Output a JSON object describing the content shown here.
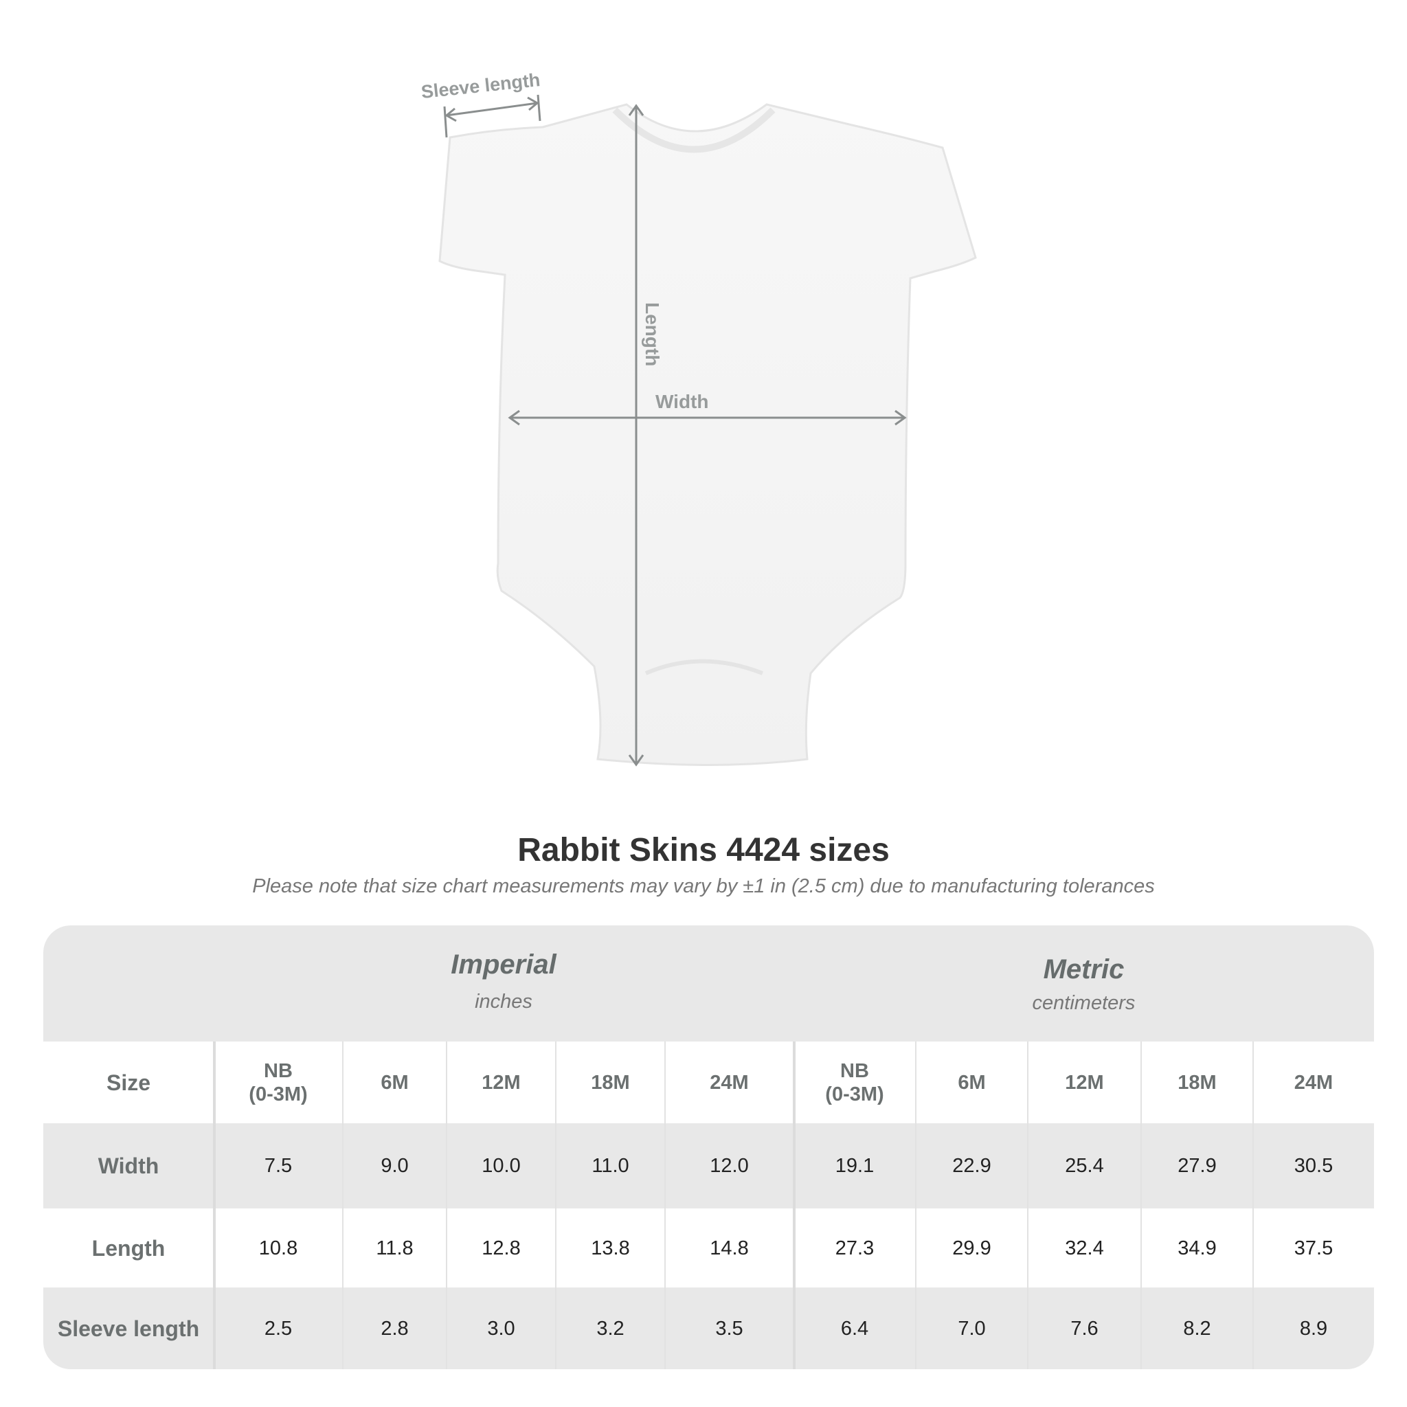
{
  "diagram": {
    "labels": {
      "sleeve": "Sleeve length",
      "length": "Length",
      "width": "Width"
    },
    "colors": {
      "arrow": "#8a8e8e",
      "label": "#979b9b",
      "garment": "#f6f6f6"
    }
  },
  "title": "Rabbit Skins 4424 sizes",
  "subtitle": "Please note that size chart measurements may vary by ±1 in (2.5 cm) due to manufacturing tolerances",
  "table": {
    "groups": [
      {
        "name": "Imperial",
        "unit": "inches"
      },
      {
        "name": "Metric",
        "unit": "centimeters"
      }
    ],
    "size_label": "Size",
    "sizes": [
      "NB\n(0-3M)",
      "6M",
      "12M",
      "18M",
      "24M",
      "NB\n(0-3M)",
      "6M",
      "12M",
      "18M",
      "24M"
    ],
    "rows": [
      {
        "label": "Width",
        "values": [
          "7.5",
          "9.0",
          "10.0",
          "11.0",
          "12.0",
          "19.1",
          "22.9",
          "25.4",
          "27.9",
          "30.5"
        ]
      },
      {
        "label": "Length",
        "values": [
          "10.8",
          "11.8",
          "12.8",
          "13.8",
          "14.8",
          "27.3",
          "29.9",
          "32.4",
          "34.9",
          "37.5"
        ]
      },
      {
        "label": "Sleeve length",
        "values": [
          "2.5",
          "2.8",
          "3.0",
          "3.2",
          "3.5",
          "6.4",
          "7.0",
          "7.6",
          "8.2",
          "8.9"
        ]
      }
    ]
  }
}
